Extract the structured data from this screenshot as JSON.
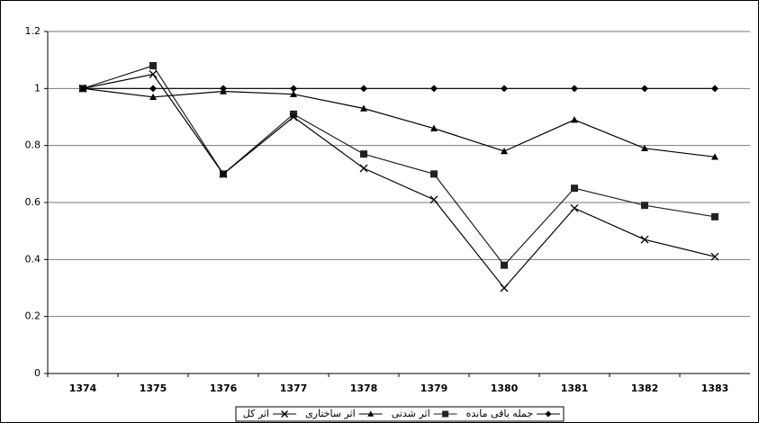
{
  "chart_data": {
    "type": "line",
    "categories": [
      "1374",
      "1375",
      "1376",
      "1377",
      "1378",
      "1379",
      "1380",
      "1381",
      "1382",
      "1383"
    ],
    "series": [
      {
        "name": "جمله باقی مانده",
        "color": "#000000",
        "marker": "diamond",
        "values": [
          1,
          1,
          1,
          1,
          1,
          1,
          1,
          1,
          1,
          1
        ]
      },
      {
        "name": "اثر شدتی",
        "color": "#222222",
        "marker": "square",
        "values": [
          1,
          1.08,
          0.7,
          0.91,
          0.77,
          0.7,
          0.38,
          0.65,
          0.59,
          0.55
        ]
      },
      {
        "name": "اثر ساختاری",
        "color": "#000000",
        "marker": "triangle",
        "values": [
          1,
          0.97,
          0.99,
          0.98,
          0.93,
          0.86,
          0.78,
          0.89,
          0.79,
          0.76
        ]
      },
      {
        "name": "اثر کل",
        "color": "#000000",
        "marker": "x",
        "values": [
          1,
          1.05,
          0.7,
          0.9,
          0.72,
          0.61,
          0.3,
          0.58,
          0.47,
          0.41
        ]
      }
    ],
    "ylim": [
      0,
      1.2
    ],
    "yticks": [
      0,
      0.2,
      0.4,
      0.6,
      0.8,
      1,
      1.2
    ],
    "grid": true,
    "legend": "bottom"
  }
}
